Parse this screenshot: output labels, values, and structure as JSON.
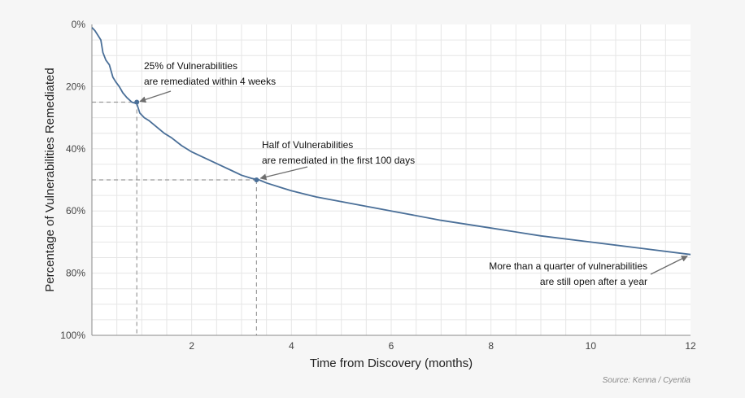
{
  "chart_data": {
    "type": "line",
    "xlabel": "Time from Discovery (months)",
    "ylabel": "Percentage of Vulnerabilities Remediated",
    "xlim": [
      0,
      12
    ],
    "ylim": [
      0,
      100
    ],
    "y_inverted": true,
    "x_ticks": [
      2,
      4,
      6,
      8,
      10,
      12
    ],
    "y_ticks": [
      "0%",
      "20%",
      "40%",
      "60%",
      "80%",
      "100%"
    ],
    "grid": true,
    "colors": {
      "line": "#4a6f98",
      "guide": "#9a9a9a",
      "arrow": "#6e6e6e"
    },
    "series": [
      {
        "x": [
          0,
          0.06,
          0.12,
          0.18,
          0.22,
          0.28,
          0.35,
          0.42,
          0.48,
          0.55,
          0.62,
          0.7,
          0.8,
          0.9,
          0.96,
          1.05,
          1.15,
          1.3,
          1.45,
          1.6,
          1.8,
          2.0,
          2.2,
          2.4,
          2.6,
          2.8,
          3.0,
          3.2,
          3.35,
          3.5,
          3.8,
          4.0,
          4.5,
          5.0,
          5.5,
          6.0,
          7.0,
          8.0,
          9.0,
          10.0,
          11.0,
          12.0
        ],
        "y": [
          1,
          2,
          3.5,
          5,
          9,
          11.5,
          13,
          17,
          18.5,
          20,
          22,
          23.5,
          25,
          25.5,
          28.5,
          30,
          31,
          33,
          35,
          36.5,
          39,
          41,
          42.5,
          44,
          45.5,
          47,
          48.5,
          49.5,
          50,
          51,
          52.5,
          53.5,
          55.5,
          57,
          58.5,
          60,
          63,
          65.5,
          68,
          70,
          72,
          74
        ]
      }
    ],
    "highlights": [
      {
        "x": 0.9,
        "y": 25
      },
      {
        "x": 3.3,
        "y": 50
      }
    ],
    "annotations": [
      {
        "lines": [
          "25% of Vulnerabilities",
          "are remediated within 4 weeks"
        ],
        "target": {
          "x": 0.9,
          "y": 25
        }
      },
      {
        "lines": [
          "Half of Vulnerabilities",
          "are remediated in the first 100 days"
        ],
        "target": {
          "x": 3.3,
          "y": 50
        }
      },
      {
        "lines": [
          "More than a quarter of vulnerabilities",
          "are still open after a year"
        ],
        "target": {
          "x": 12,
          "y": 74
        }
      }
    ],
    "source": "Source: Kenna / Cyentia"
  }
}
